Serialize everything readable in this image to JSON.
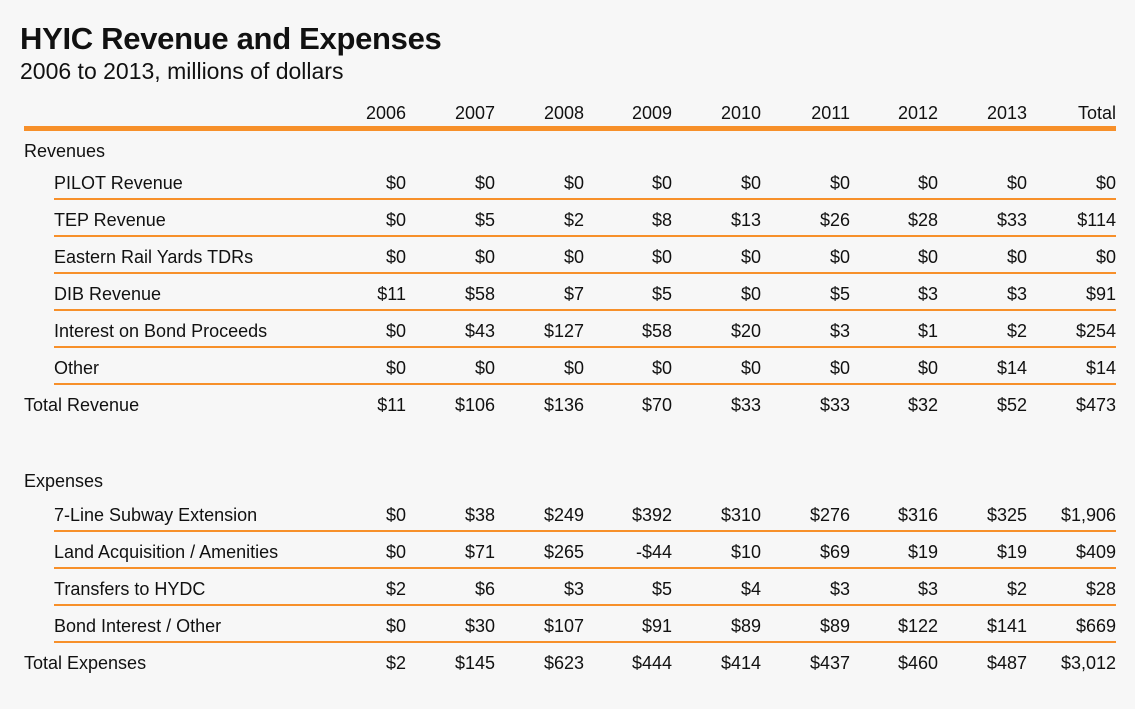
{
  "title": "HYIC Revenue and Expenses",
  "subtitle": "2006 to 2013, millions of dollars",
  "columns": [
    "2006",
    "2007",
    "2008",
    "2009",
    "2010",
    "2011",
    "2012",
    "2013",
    "Total"
  ],
  "revenues": {
    "heading": "Revenues",
    "rows": [
      {
        "label": "PILOT Revenue",
        "values": [
          "$0",
          "$0",
          "$0",
          "$0",
          "$0",
          "$0",
          "$0",
          "$0",
          "$0"
        ]
      },
      {
        "label": "TEP Revenue",
        "values": [
          "$0",
          "$5",
          "$2",
          "$8",
          "$13",
          "$26",
          "$28",
          "$33",
          "$114"
        ]
      },
      {
        "label": "Eastern Rail Yards TDRs",
        "values": [
          "$0",
          "$0",
          "$0",
          "$0",
          "$0",
          "$0",
          "$0",
          "$0",
          "$0"
        ]
      },
      {
        "label": "DIB Revenue",
        "values": [
          "$11",
          "$58",
          "$7",
          "$5",
          "$0",
          "$5",
          "$3",
          "$3",
          "$91"
        ]
      },
      {
        "label": "Interest on Bond Proceeds",
        "values": [
          "$0",
          "$43",
          "$127",
          "$58",
          "$20",
          "$3",
          "$1",
          "$2",
          "$254"
        ]
      },
      {
        "label": "Other",
        "values": [
          "$0",
          "$0",
          "$0",
          "$0",
          "$0",
          "$0",
          "$0",
          "$14",
          "$14"
        ]
      }
    ],
    "total": {
      "label": "Total Revenue",
      "values": [
        "$11",
        "$106",
        "$136",
        "$70",
        "$33",
        "$33",
        "$32",
        "$52",
        "$473"
      ]
    }
  },
  "expenses": {
    "heading": "Expenses",
    "rows": [
      {
        "label": "7-Line Subway Extension",
        "values": [
          "$0",
          "$38",
          "$249",
          "$392",
          "$310",
          "$276",
          "$316",
          "$325",
          "$1,906"
        ]
      },
      {
        "label": "Land Acquisition / Amenities",
        "values": [
          "$0",
          "$71",
          "$265",
          "-$44",
          "$10",
          "$69",
          "$19",
          "$19",
          "$409"
        ]
      },
      {
        "label": "Transfers to HYDC",
        "values": [
          "$2",
          "$6",
          "$3",
          "$5",
          "$4",
          "$3",
          "$3",
          "$2",
          "$28"
        ]
      },
      {
        "label": "Bond Interest / Other",
        "values": [
          "$0",
          "$30",
          "$107",
          "$91",
          "$89",
          "$89",
          "$122",
          "$141",
          "$669"
        ]
      }
    ],
    "total": {
      "label": "Total Expenses",
      "values": [
        "$2",
        "$145",
        "$623",
        "$444",
        "$414",
        "$437",
        "$460",
        "$487",
        "$3,012"
      ]
    }
  },
  "colors": {
    "accent": "#f7902a",
    "background": "#f7f7f7",
    "text": "#111111"
  }
}
